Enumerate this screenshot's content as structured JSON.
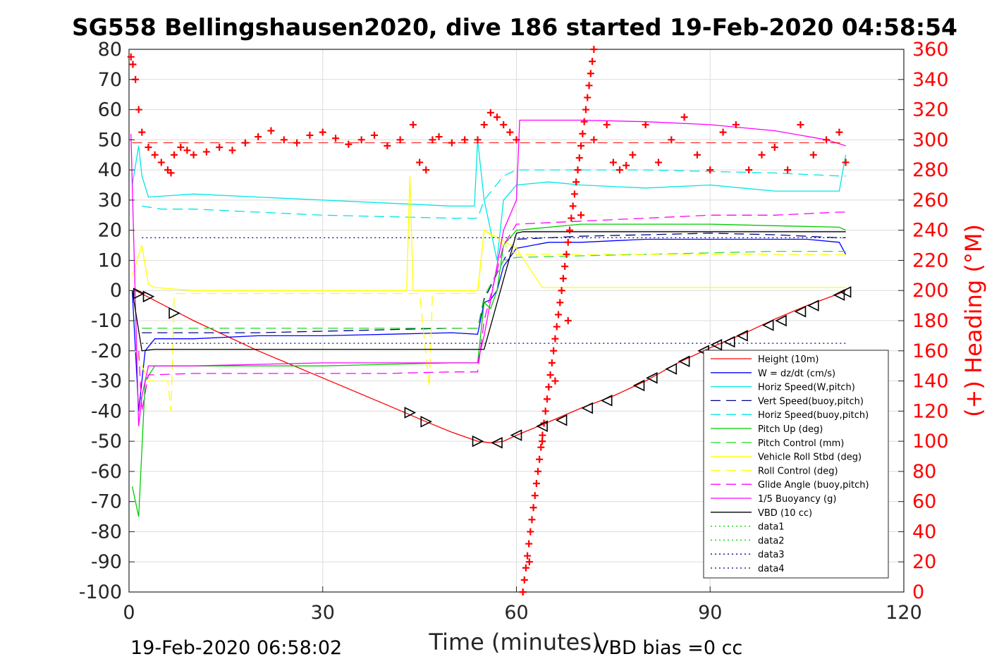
{
  "title": "SG558 Bellingshausen2020, dive 186 started 19-Feb-2020 04:58:54",
  "footer": {
    "left": "19-Feb-2020 06:58:02",
    "right": "VBD bias =0 cc"
  },
  "colors": {
    "heading": "#ff0000",
    "axis": "#262626",
    "grid": "#dcdcdc"
  },
  "chart_data": {
    "type": "line",
    "xlabel": "Time (minutes)",
    "ylabel_right": "(+) Heading (°M)",
    "xlim": [
      0,
      120
    ],
    "ylim": [
      -100,
      80
    ],
    "ylim_right": [
      0,
      360
    ],
    "xticks": [
      0,
      30,
      60,
      90,
      120
    ],
    "yticks": [
      -100,
      -90,
      -80,
      -70,
      -60,
      -50,
      -40,
      -30,
      -20,
      -10,
      0,
      10,
      20,
      30,
      40,
      50,
      60,
      70,
      80
    ],
    "yticks_right": [
      0,
      20,
      40,
      60,
      80,
      100,
      120,
      140,
      160,
      180,
      200,
      220,
      240,
      260,
      280,
      300,
      320,
      340,
      360
    ],
    "grid": true,
    "legend_position": "bottom-right",
    "series": [
      {
        "name": "Height (10m)",
        "color": "#ff0000",
        "style": "solid",
        "x": [
          1,
          10,
          20,
          30,
          40,
          46,
          50,
          54,
          56,
          58,
          60,
          64,
          70,
          75,
          80,
          85,
          90,
          95,
          100,
          105,
          110,
          111
        ],
        "y": [
          0,
          -10,
          -20,
          -29,
          -38,
          -43.5,
          -47,
          -50,
          -50.5,
          -50,
          -48,
          -44.5,
          -39,
          -35,
          -30,
          -24,
          -19,
          -14.5,
          -9.5,
          -5,
          -1,
          0
        ]
      },
      {
        "name": "W = dz/dt (cm/s)",
        "color": "#0000ff",
        "style": "solid",
        "x": [
          0.5,
          1.5,
          2.5,
          4,
          10,
          20,
          30,
          40,
          50,
          54,
          55,
          56,
          57,
          58,
          60,
          65,
          70,
          80,
          90,
          100,
          105,
          110,
          111
        ],
        "y": [
          0,
          -40,
          -20,
          -16,
          -16,
          -15,
          -15,
          -14.5,
          -14,
          -14.5,
          -4,
          -3,
          0,
          8,
          14,
          16,
          16,
          17,
          17,
          17,
          17,
          16,
          12
        ]
      },
      {
        "name": "Horiz Speed(W,pitch)",
        "color": "#00e5e5",
        "style": "solid",
        "x": [
          0.5,
          1.5,
          2,
          3,
          10,
          20,
          30,
          40,
          50,
          53.5,
          54,
          55,
          56,
          57,
          58,
          60,
          65,
          70,
          80,
          90,
          100,
          110,
          111
        ],
        "y": [
          35,
          48,
          38,
          31,
          32,
          31,
          30,
          29,
          28,
          28,
          50,
          30,
          20,
          10,
          30,
          35,
          36,
          35,
          34,
          35,
          33,
          33,
          45
        ]
      },
      {
        "name": "Vert Speed(buoy,pitch)",
        "color": "#00008b",
        "style": "dashed",
        "x": [
          2,
          10,
          20,
          30,
          40,
          50,
          54,
          55,
          58,
          60,
          70,
          80,
          90,
          100,
          110,
          111
        ],
        "y": [
          -14,
          -14,
          -14,
          -13.5,
          -13,
          -12.5,
          -12.5,
          -3,
          10,
          17,
          18,
          18.5,
          19,
          18.5,
          17.5,
          17.5
        ]
      },
      {
        "name": "Horiz Speed(buoy,pitch)",
        "color": "#00e5e5",
        "style": "dashed",
        "x": [
          2,
          5,
          10,
          20,
          30,
          40,
          50,
          54,
          55,
          58,
          60,
          70,
          80,
          90,
          100,
          110,
          111
        ],
        "y": [
          28,
          27,
          27,
          26,
          25,
          24.5,
          24,
          24,
          30,
          38,
          40,
          40,
          40,
          39.5,
          39,
          38,
          38
        ]
      },
      {
        "name": "Pitch Up (deg)",
        "color": "#00cc00",
        "style": "solid",
        "x": [
          0.5,
          1.5,
          2.5,
          4,
          10,
          20,
          30,
          40,
          50,
          54,
          55,
          56,
          57,
          58,
          60,
          70,
          80,
          90,
          100,
          110,
          111
        ],
        "y": [
          -65,
          -75,
          -30,
          -25,
          -25,
          -25,
          -25,
          -24.5,
          -24,
          -24,
          -4,
          -6,
          0,
          15,
          20,
          22,
          22,
          22,
          21.5,
          21,
          20
        ]
      },
      {
        "name": "Pitch Control (mm)",
        "color": "#33dd33",
        "style": "dashed",
        "x": [
          2,
          10,
          20,
          30,
          40,
          50,
          54,
          55,
          58,
          60,
          70,
          80,
          90,
          100,
          110,
          111
        ],
        "y": [
          -12.5,
          -12.5,
          -12.5,
          -12.5,
          -12.5,
          -12.5,
          -12.5,
          -2,
          10,
          11,
          11.5,
          12,
          12.5,
          13,
          13,
          13
        ]
      },
      {
        "name": "Vehicle Roll Stbd (deg)",
        "color": "#ffff00",
        "style": "solid",
        "x": [
          0.5,
          2,
          3,
          4,
          10,
          20,
          30,
          40,
          43,
          43.5,
          44,
          46,
          50,
          54,
          55,
          60,
          64,
          70,
          80,
          90,
          100,
          110,
          111
        ],
        "y": [
          5,
          15,
          2,
          1,
          0,
          0,
          0,
          0,
          0,
          38,
          0,
          0,
          0,
          0,
          20,
          14,
          1,
          1,
          1,
          1,
          1,
          1,
          1
        ]
      },
      {
        "name": "Roll Control (deg)",
        "color": "#ffff00",
        "style": "dashed",
        "x": [
          1,
          3,
          6,
          6.5,
          7,
          10,
          30,
          45,
          46.5,
          47,
          50,
          54,
          55,
          60,
          70,
          80,
          90,
          100,
          110,
          111
        ],
        "y": [
          -20,
          -30,
          -30,
          -40,
          -1,
          -1,
          -1,
          -1,
          -32,
          -1,
          -1,
          -1,
          20,
          12,
          12,
          12,
          12,
          12,
          12,
          12
        ]
      },
      {
        "name": "Glide Angle (buoy,pitch)",
        "color": "#ff00ff",
        "style": "dashed",
        "x": [
          1.5,
          2,
          3,
          10,
          20,
          30,
          40,
          50,
          54,
          55,
          58,
          60,
          70,
          80,
          90,
          100,
          110,
          111
        ],
        "y": [
          -20,
          -40,
          -28,
          -27.5,
          -27.5,
          -27.5,
          -27.5,
          -27,
          -27,
          -10,
          15,
          22,
          23,
          24,
          25,
          25,
          26,
          26
        ]
      },
      {
        "name": "1/5 Buoyancy (g)",
        "color": "#ff00ff",
        "style": "solid",
        "x": [
          0.3,
          1.5,
          2,
          3,
          10,
          20,
          30,
          40,
          50,
          54,
          55,
          58,
          60,
          60.5,
          70,
          80,
          90,
          100,
          108,
          111
        ],
        "y": [
          52,
          -45,
          -35,
          -25,
          -25,
          -24.5,
          -24,
          -24,
          -24,
          -24,
          -15,
          20,
          30,
          56.5,
          56.5,
          56,
          55,
          53,
          50,
          48
        ]
      },
      {
        "name": "VBD (10 cc)",
        "color": "#000000",
        "style": "solid",
        "x": [
          0.5,
          2,
          4,
          30,
          54,
          55,
          60,
          61,
          80,
          100,
          111
        ],
        "y": [
          0,
          -20,
          -19.5,
          -19.5,
          -19.5,
          -19.5,
          19,
          19.5,
          19.5,
          19.5,
          19.5
        ]
      },
      {
        "name": "data1",
        "color": "#00cc00",
        "style": "dotted",
        "x": [],
        "y": []
      },
      {
        "name": "data2",
        "color": "#00cc00",
        "style": "dotted",
        "x": [],
        "y": []
      },
      {
        "name": "data3",
        "color": "#00008b",
        "style": "dotted",
        "x": [
          2,
          111
        ],
        "y": [
          -17.5,
          -17.5
        ]
      },
      {
        "name": "data4",
        "color": "#00008b",
        "style": "dotted",
        "x": [
          2,
          111
        ],
        "y": [
          17.5,
          17.5
        ]
      }
    ],
    "heading": {
      "name": "Heading (°M)",
      "axis": "right",
      "color": "#ff0000",
      "marker": "+",
      "x": [
        0.3,
        0.6,
        1,
        1.5,
        2,
        3,
        4,
        5,
        6,
        6.5,
        7,
        8,
        9,
        10,
        12,
        14,
        16,
        18,
        20,
        22,
        24,
        26,
        28,
        30,
        32,
        34,
        36,
        38,
        40,
        42,
        44,
        45,
        46,
        47,
        48,
        50,
        52,
        54,
        55,
        56,
        57,
        58,
        59,
        60,
        61,
        62,
        64,
        66,
        68,
        70,
        72,
        74,
        75,
        76,
        77,
        78,
        80,
        82,
        84,
        86,
        88,
        90,
        92,
        94,
        96,
        98,
        100,
        102,
        104,
        106,
        108,
        110,
        111
      ],
      "y": [
        355,
        350,
        340,
        320,
        305,
        295,
        290,
        285,
        280,
        278,
        290,
        295,
        293,
        290,
        292,
        295,
        293,
        298,
        302,
        306,
        300,
        298,
        303,
        305,
        301,
        297,
        300,
        303,
        296,
        300,
        310,
        285,
        280,
        300,
        302,
        298,
        300,
        300,
        310,
        318,
        315,
        310,
        305,
        300,
        0,
        20,
        100,
        140,
        180,
        250,
        300,
        310,
        285,
        280,
        283,
        290,
        310,
        285,
        300,
        315,
        290,
        280,
        305,
        310,
        280,
        290,
        295,
        280,
        310,
        290,
        300,
        305,
        285
      ]
    },
    "dive_markers": {
      "x": [
        1.5,
        3,
        7,
        43.5,
        46,
        54,
        57,
        60,
        64,
        67,
        71,
        74,
        79,
        81,
        84,
        86,
        89,
        91,
        93,
        95,
        99,
        101,
        104,
        106,
        110,
        111
      ],
      "y": [
        -1,
        -2,
        -7.5,
        -40.5,
        -43.5,
        -50,
        -50.5,
        -48,
        -45,
        -43,
        -39,
        -36.5,
        -31.5,
        -29,
        -26,
        -23.5,
        -20,
        -18,
        -17,
        -15,
        -11.5,
        -10,
        -7,
        -5,
        -1.5,
        -0.5
      ]
    }
  }
}
